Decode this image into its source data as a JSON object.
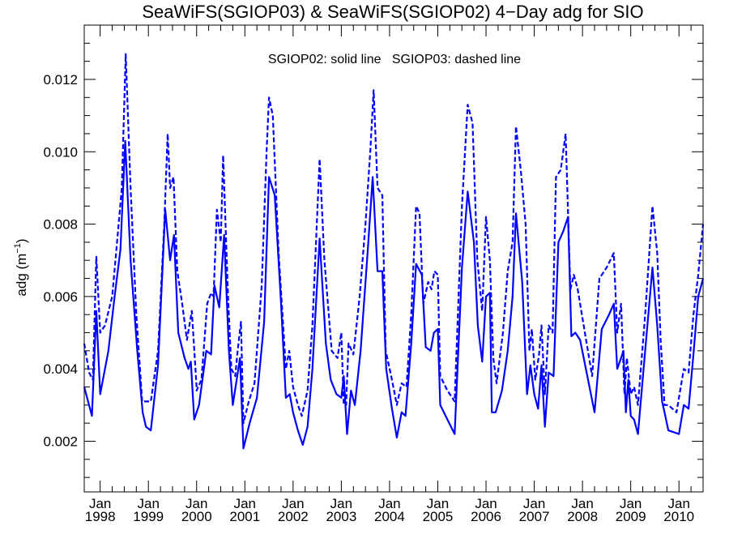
{
  "chart_data": {
    "type": "line",
    "title": "SeaWiFS(SGIOP03) & SeaWiFS(SGIOP02) 4−Day adg for SIO",
    "annotation": "SGIOP02: solid line   SGIOP03: dashed line",
    "ylabel": "adg (m",
    "ylabel_sup": "−1",
    "ylabel_end": ")",
    "xlim": [
      1997.67,
      2010.5
    ],
    "ylim": [
      0.0006,
      0.0135
    ],
    "yticks": [
      {
        "value": 0.002,
        "label": "0.002"
      },
      {
        "value": 0.004,
        "label": "0.004"
      },
      {
        "value": 0.006,
        "label": "0.006"
      },
      {
        "value": 0.008,
        "label": "0.008"
      },
      {
        "value": 0.01,
        "label": "0.010"
      },
      {
        "value": 0.012,
        "label": "0.012"
      }
    ],
    "xticks": [
      {
        "value": 1998,
        "month": "Jan",
        "year": "1998"
      },
      {
        "value": 1999,
        "month": "Jan",
        "year": "1999"
      },
      {
        "value": 2000,
        "month": "Jan",
        "year": "2000"
      },
      {
        "value": 2001,
        "month": "Jan",
        "year": "2001"
      },
      {
        "value": 2002,
        "month": "Jan",
        "year": "2002"
      },
      {
        "value": 2003,
        "month": "Jan",
        "year": "2003"
      },
      {
        "value": 2004,
        "month": "Jan",
        "year": "2004"
      },
      {
        "value": 2005,
        "month": "Jan",
        "year": "2005"
      },
      {
        "value": 2006,
        "month": "Jan",
        "year": "2006"
      },
      {
        "value": 2007,
        "month": "Jan",
        "year": "2007"
      },
      {
        "value": 2008,
        "month": "Jan",
        "year": "2008"
      },
      {
        "value": 2009,
        "month": "Jan",
        "year": "2009"
      },
      {
        "value": 2010,
        "month": "Jan",
        "year": "2010"
      }
    ],
    "line_color": "#0000ff",
    "series": [
      {
        "name": "SGIOP02",
        "style": "solid",
        "points": [
          [
            1997.67,
            0.0035
          ],
          [
            1997.83,
            0.0027
          ],
          [
            1997.92,
            0.0056
          ],
          [
            1998.0,
            0.0033
          ],
          [
            1998.17,
            0.0045
          ],
          [
            1998.3,
            0.006
          ],
          [
            1998.42,
            0.0073
          ],
          [
            1998.52,
            0.0103
          ],
          [
            1998.63,
            0.007
          ],
          [
            1998.77,
            0.0045
          ],
          [
            1998.88,
            0.0028
          ],
          [
            1998.95,
            0.0024
          ],
          [
            1999.05,
            0.0023
          ],
          [
            1999.2,
            0.0041
          ],
          [
            1999.35,
            0.0084
          ],
          [
            1999.45,
            0.007
          ],
          [
            1999.53,
            0.0077
          ],
          [
            1999.62,
            0.005
          ],
          [
            1999.75,
            0.0043
          ],
          [
            1999.83,
            0.004
          ],
          [
            1999.88,
            0.0042
          ],
          [
            1999.95,
            0.0026
          ],
          [
            2000.05,
            0.003
          ],
          [
            2000.2,
            0.0045
          ],
          [
            2000.3,
            0.0044
          ],
          [
            2000.37,
            0.0063
          ],
          [
            2000.47,
            0.0057
          ],
          [
            2000.57,
            0.0077
          ],
          [
            2000.67,
            0.0045
          ],
          [
            2000.75,
            0.003
          ],
          [
            2000.9,
            0.0043
          ],
          [
            2000.97,
            0.0018
          ],
          [
            2001.1,
            0.0025
          ],
          [
            2001.25,
            0.0032
          ],
          [
            2001.4,
            0.0053
          ],
          [
            2001.5,
            0.0093
          ],
          [
            2001.62,
            0.0088
          ],
          [
            2001.75,
            0.0058
          ],
          [
            2001.85,
            0.0032
          ],
          [
            2001.93,
            0.0033
          ],
          [
            2002.0,
            0.0028
          ],
          [
            2002.1,
            0.0023
          ],
          [
            2002.2,
            0.0019
          ],
          [
            2002.3,
            0.0024
          ],
          [
            2002.4,
            0.004
          ],
          [
            2002.55,
            0.0076
          ],
          [
            2002.68,
            0.0047
          ],
          [
            2002.78,
            0.0037
          ],
          [
            2002.9,
            0.0033
          ],
          [
            2003.0,
            0.0032
          ],
          [
            2003.05,
            0.0038
          ],
          [
            2003.12,
            0.0022
          ],
          [
            2003.2,
            0.0034
          ],
          [
            2003.28,
            0.003
          ],
          [
            2003.4,
            0.0045
          ],
          [
            2003.55,
            0.0073
          ],
          [
            2003.65,
            0.0093
          ],
          [
            2003.75,
            0.0067
          ],
          [
            2003.85,
            0.0067
          ],
          [
            2003.93,
            0.004
          ],
          [
            2004.05,
            0.0029
          ],
          [
            2004.15,
            0.0021
          ],
          [
            2004.25,
            0.0028
          ],
          [
            2004.33,
            0.0027
          ],
          [
            2004.45,
            0.0047
          ],
          [
            2004.55,
            0.0069
          ],
          [
            2004.67,
            0.0066
          ],
          [
            2004.75,
            0.0046
          ],
          [
            2004.85,
            0.0045
          ],
          [
            2004.92,
            0.005
          ],
          [
            2005.0,
            0.0051
          ],
          [
            2005.05,
            0.003
          ],
          [
            2005.2,
            0.0026
          ],
          [
            2005.35,
            0.0022
          ],
          [
            2005.5,
            0.0068
          ],
          [
            2005.62,
            0.0089
          ],
          [
            2005.75,
            0.0075
          ],
          [
            2005.83,
            0.0052
          ],
          [
            2005.92,
            0.0042
          ],
          [
            2006.0,
            0.006
          ],
          [
            2006.08,
            0.0061
          ],
          [
            2006.12,
            0.0028
          ],
          [
            2006.2,
            0.0028
          ],
          [
            2006.33,
            0.0034
          ],
          [
            2006.45,
            0.0045
          ],
          [
            2006.55,
            0.006
          ],
          [
            2006.62,
            0.0083
          ],
          [
            2006.75,
            0.0064
          ],
          [
            2006.85,
            0.0033
          ],
          [
            2006.92,
            0.0041
          ],
          [
            2007.0,
            0.0033
          ],
          [
            2007.08,
            0.0029
          ],
          [
            2007.15,
            0.0041
          ],
          [
            2007.22,
            0.0024
          ],
          [
            2007.3,
            0.0039
          ],
          [
            2007.4,
            0.0038
          ],
          [
            2007.5,
            0.0075
          ],
          [
            2007.6,
            0.0078
          ],
          [
            2007.7,
            0.0082
          ],
          [
            2007.77,
            0.0049
          ],
          [
            2007.85,
            0.005
          ],
          [
            2007.95,
            0.0048
          ],
          [
            2008.1,
            0.0038
          ],
          [
            2008.25,
            0.0028
          ],
          [
            2008.4,
            0.0051
          ],
          [
            2008.55,
            0.0055
          ],
          [
            2008.65,
            0.0058
          ],
          [
            2008.72,
            0.004
          ],
          [
            2008.8,
            0.0043
          ],
          [
            2008.85,
            0.0045
          ],
          [
            2008.9,
            0.0028
          ],
          [
            2008.95,
            0.0037
          ],
          [
            2009.0,
            0.0027
          ],
          [
            2009.07,
            0.0026
          ],
          [
            2009.15,
            0.0022
          ],
          [
            2009.3,
            0.0045
          ],
          [
            2009.45,
            0.0068
          ],
          [
            2009.55,
            0.0052
          ],
          [
            2009.65,
            0.0031
          ],
          [
            2009.7,
            0.0028
          ],
          [
            2009.78,
            0.0023
          ],
          [
            2010.0,
            0.0022
          ],
          [
            2010.1,
            0.003
          ],
          [
            2010.2,
            0.0029
          ],
          [
            2010.3,
            0.0044
          ],
          [
            2010.4,
            0.006
          ],
          [
            2010.5,
            0.0065
          ]
        ]
      },
      {
        "name": "SGIOP03",
        "style": "dashed",
        "points": [
          [
            1997.67,
            0.0047
          ],
          [
            1997.77,
            0.0039
          ],
          [
            1997.85,
            0.0037
          ],
          [
            1997.92,
            0.0071
          ],
          [
            2000.0,
            0.0035
          ],
          [
            1998.0,
            0.005
          ],
          [
            1998.1,
            0.0052
          ],
          [
            1998.25,
            0.006
          ],
          [
            1998.35,
            0.0075
          ],
          [
            1998.45,
            0.009
          ],
          [
            1998.53,
            0.0127
          ],
          [
            1998.63,
            0.009
          ],
          [
            1998.75,
            0.0055
          ],
          [
            1998.87,
            0.0031
          ],
          [
            1998.95,
            0.0031
          ],
          [
            1999.05,
            0.0031
          ],
          [
            1999.2,
            0.0045
          ],
          [
            1999.33,
            0.008
          ],
          [
            1999.4,
            0.0105
          ],
          [
            1999.45,
            0.009
          ],
          [
            1999.52,
            0.0093
          ],
          [
            1999.6,
            0.0067
          ],
          [
            1999.7,
            0.0058
          ],
          [
            1999.8,
            0.0048
          ],
          [
            1999.9,
            0.0056
          ],
          [
            2000.0,
            0.0034
          ],
          [
            2000.1,
            0.0037
          ],
          [
            2000.22,
            0.0058
          ],
          [
            2000.3,
            0.0061
          ],
          [
            2000.35,
            0.006
          ],
          [
            2000.42,
            0.0084
          ],
          [
            2000.5,
            0.0075
          ],
          [
            2000.55,
            0.0099
          ],
          [
            2000.65,
            0.006
          ],
          [
            2000.72,
            0.004
          ],
          [
            2000.8,
            0.0038
          ],
          [
            2000.85,
            0.0045
          ],
          [
            2000.92,
            0.0053
          ],
          [
            2000.97,
            0.0025
          ],
          [
            2001.08,
            0.0031
          ],
          [
            2001.2,
            0.0036
          ],
          [
            2001.35,
            0.0063
          ],
          [
            2001.45,
            0.01
          ],
          [
            2001.5,
            0.0115
          ],
          [
            2001.58,
            0.011
          ],
          [
            2001.7,
            0.0072
          ],
          [
            2001.85,
            0.004
          ],
          [
            2001.92,
            0.0045
          ],
          [
            2002.0,
            0.0035
          ],
          [
            2002.1,
            0.003
          ],
          [
            2002.18,
            0.0027
          ],
          [
            2002.3,
            0.0034
          ],
          [
            2002.4,
            0.0052
          ],
          [
            2002.55,
            0.0098
          ],
          [
            2002.65,
            0.007
          ],
          [
            2002.8,
            0.0045
          ],
          [
            2002.92,
            0.0043
          ],
          [
            2003.0,
            0.005
          ],
          [
            2003.05,
            0.003
          ],
          [
            2003.1,
            0.003
          ],
          [
            2003.15,
            0.0047
          ],
          [
            2003.25,
            0.0044
          ],
          [
            2003.38,
            0.006
          ],
          [
            2003.5,
            0.008
          ],
          [
            2003.6,
            0.01
          ],
          [
            2003.67,
            0.0117
          ],
          [
            2003.75,
            0.009
          ],
          [
            2003.85,
            0.0088
          ],
          [
            2003.92,
            0.0045
          ],
          [
            2004.05,
            0.0037
          ],
          [
            2004.15,
            0.003
          ],
          [
            2004.25,
            0.0036
          ],
          [
            2004.35,
            0.0035
          ],
          [
            2004.45,
            0.0055
          ],
          [
            2004.55,
            0.0085
          ],
          [
            2004.62,
            0.0083
          ],
          [
            2004.7,
            0.0058
          ],
          [
            2004.8,
            0.0064
          ],
          [
            2004.87,
            0.0062
          ],
          [
            2004.93,
            0.0067
          ],
          [
            2005.0,
            0.0066
          ],
          [
            2005.05,
            0.0038
          ],
          [
            2005.2,
            0.0034
          ],
          [
            2005.35,
            0.0031
          ],
          [
            2005.5,
            0.0085
          ],
          [
            2005.62,
            0.0113
          ],
          [
            2005.72,
            0.0108
          ],
          [
            2005.82,
            0.007
          ],
          [
            2005.92,
            0.0056
          ],
          [
            2006.0,
            0.0082
          ],
          [
            2006.08,
            0.007
          ],
          [
            2006.15,
            0.0043
          ],
          [
            2006.22,
            0.0036
          ],
          [
            2006.35,
            0.005
          ],
          [
            2006.45,
            0.0067
          ],
          [
            2006.55,
            0.0075
          ],
          [
            2006.62,
            0.0107
          ],
          [
            2006.72,
            0.0095
          ],
          [
            2006.82,
            0.008
          ],
          [
            2006.9,
            0.0045
          ],
          [
            2006.95,
            0.0051
          ],
          [
            2007.02,
            0.0037
          ],
          [
            2007.1,
            0.0044
          ],
          [
            2007.15,
            0.0052
          ],
          [
            2007.22,
            0.0033
          ],
          [
            2007.3,
            0.0052
          ],
          [
            2007.38,
            0.005
          ],
          [
            2007.45,
            0.0093
          ],
          [
            2007.55,
            0.0095
          ],
          [
            2007.65,
            0.0105
          ],
          [
            2007.75,
            0.0062
          ],
          [
            2007.82,
            0.0066
          ],
          [
            2007.9,
            0.0062
          ],
          [
            2008.05,
            0.005
          ],
          [
            2008.2,
            0.0038
          ],
          [
            2008.35,
            0.0065
          ],
          [
            2008.5,
            0.0068
          ],
          [
            2008.65,
            0.0072
          ],
          [
            2008.72,
            0.005
          ],
          [
            2008.8,
            0.0058
          ],
          [
            2008.87,
            0.0033
          ],
          [
            2008.92,
            0.0043
          ],
          [
            2009.0,
            0.0033
          ],
          [
            2009.07,
            0.0035
          ],
          [
            2009.15,
            0.003
          ],
          [
            2009.3,
            0.0055
          ],
          [
            2009.45,
            0.0085
          ],
          [
            2009.55,
            0.0072
          ],
          [
            2009.62,
            0.0048
          ],
          [
            2009.7,
            0.003
          ],
          [
            2009.78,
            0.003
          ],
          [
            2009.95,
            0.0028
          ],
          [
            2010.1,
            0.004
          ],
          [
            2010.2,
            0.0039
          ],
          [
            2010.3,
            0.0055
          ],
          [
            2010.4,
            0.0066
          ],
          [
            2010.5,
            0.008
          ]
        ]
      }
    ]
  }
}
